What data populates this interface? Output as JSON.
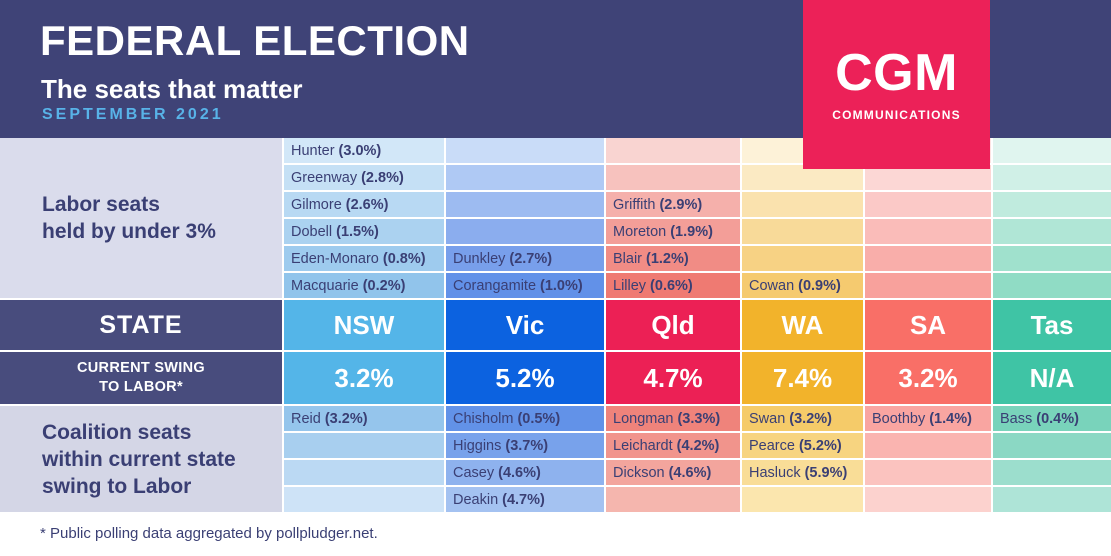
{
  "header": {
    "title": "FEDERAL ELECTION",
    "subtitle": "The seats that matter",
    "date": "SEPTEMBER 2021",
    "bg": "#3F4377",
    "date_color": "#58B3E8"
  },
  "logo": {
    "name": "CGM",
    "tagline": "COMMUNICATIONS",
    "bg": "#EC2158"
  },
  "labels": {
    "labor_lines": [
      "Labor seats",
      "held by under 3%"
    ],
    "labor_bg": "#DADCEC",
    "state": "STATE",
    "swing_lines": [
      "CURRENT SWING",
      "TO LABOR*"
    ],
    "coalition_lines": [
      "Coalition seats",
      "within current state",
      "swing to Labor"
    ],
    "coalition_bg": "#D4D6E6",
    "band_bg": "#484C7D",
    "text_color": "#3A3F74"
  },
  "columns": [
    {
      "state": "NSW",
      "swing": "3.2%",
      "color": "#54B5E8",
      "upper_colors": [
        "#D2E7F8",
        "#C5E0F5",
        "#B8D9F3",
        "#ABD2F0",
        "#9ECBEE",
        "#91C4EB"
      ],
      "upper_seats": [
        {
          "name": "Hunter",
          "pct": "(3.0%)"
        },
        {
          "name": "Greenway",
          "pct": "(2.8%)"
        },
        {
          "name": "Gilmore",
          "pct": "(2.6%)"
        },
        {
          "name": "Dobell",
          "pct": "(1.5%)"
        },
        {
          "name": "Eden-Monaro",
          "pct": "(0.8%)"
        },
        {
          "name": "Macquarie",
          "pct": "(0.2%)"
        }
      ],
      "lower_colors": [
        "#95C5EC",
        "#A8CFEF",
        "#BBD9F3",
        "#CEE3F7"
      ],
      "lower_seats": [
        {
          "name": "Reid",
          "pct": "(3.2%)"
        },
        null,
        null,
        null
      ]
    },
    {
      "state": "Vic",
      "swing": "5.2%",
      "color": "#0C62E0",
      "upper_colors": [
        "#C9DCF8",
        "#AFC9F4",
        "#9DBBF1",
        "#8BADEE",
        "#789FEB",
        "#6291E8"
      ],
      "upper_seats": [
        null,
        null,
        null,
        null,
        {
          "name": "Dunkley",
          "pct": "(2.7%)"
        },
        {
          "name": "Corangamite",
          "pct": "(1.0%)"
        }
      ],
      "lower_colors": [
        "#6292E8",
        "#78A2EB",
        "#8EB2EE",
        "#A4C2F1"
      ],
      "lower_seats": [
        {
          "name": "Chisholm",
          "pct": "(0.5%)"
        },
        {
          "name": "Higgins",
          "pct": "(3.7%)"
        },
        {
          "name": "Casey",
          "pct": "(4.6%)"
        },
        {
          "name": "Deakin",
          "pct": "(4.7%)"
        }
      ]
    },
    {
      "state": "Qld",
      "swing": "4.7%",
      "color": "#EC2055",
      "upper_colors": [
        "#F9D4D1",
        "#F7C2BE",
        "#F5B0AB",
        "#F39E98",
        "#F18C85",
        "#EF7A72"
      ],
      "upper_seats": [
        null,
        null,
        {
          "name": "Griffith",
          "pct": "(2.9%)"
        },
        {
          "name": "Moreton",
          "pct": "(1.9%)"
        },
        {
          "name": "Blair",
          "pct": "(1.2%)"
        },
        {
          "name": "Lilley",
          "pct": "(0.6%)"
        }
      ],
      "lower_colors": [
        "#EF837B",
        "#F1948C",
        "#F3A59D",
        "#F5B6AE"
      ],
      "lower_seats": [
        {
          "name": "Longman",
          "pct": "(3.3%)"
        },
        {
          "name": "Leichardt",
          "pct": "(4.2%)"
        },
        {
          "name": "Dickson",
          "pct": "(4.6%)"
        },
        null
      ]
    },
    {
      "state": "WA",
      "swing": "7.4%",
      "color": "#F2B32B",
      "upper_colors": [
        "#FDF2D8",
        "#FBEAC3",
        "#FAE2AE",
        "#F8DA99",
        "#F7D284",
        "#F5CA6F"
      ],
      "upper_seats": [
        null,
        null,
        null,
        null,
        null,
        {
          "name": "Cowan",
          "pct": "(0.9%)"
        }
      ],
      "lower_colors": [
        "#F5CB69",
        "#F7D480",
        "#F9DD97",
        "#FBE6AE"
      ],
      "lower_seats": [
        {
          "name": "Swan",
          "pct": "(3.2%)"
        },
        {
          "name": "Pearce",
          "pct": "(5.2%)"
        },
        {
          "name": "Hasluck",
          "pct": "(5.9%)"
        },
        null
      ]
    },
    {
      "state": "SA",
      "swing": "3.2%",
      "color": "#F96F67",
      "upper_colors": [
        "#FDE4E3",
        "#FCD7D5",
        "#FBC9C7",
        "#FABCB9",
        "#F9AEAA",
        "#F8A19C"
      ],
      "upper_seats": [
        null,
        null,
        null,
        null,
        null,
        null
      ],
      "lower_colors": [
        "#F9A5A1",
        "#FAB4B0",
        "#FBC3BF",
        "#FCD2CE"
      ],
      "lower_seats": [
        {
          "name": "Boothby",
          "pct": "(1.4%)"
        },
        null,
        null,
        null
      ]
    },
    {
      "state": "Tas",
      "swing": "N/A",
      "color": "#3FC4A5",
      "upper_colors": [
        "#E0F5EF",
        "#D0F0E7",
        "#C0EBDE",
        "#B0E6D6",
        "#A0E1CD",
        "#90DCC5"
      ],
      "upper_seats": [
        null,
        null,
        null,
        null,
        null,
        null
      ],
      "lower_colors": [
        "#79D3BB",
        "#8BD8C4",
        "#9CDECD",
        "#AEE4D7"
      ],
      "lower_seats": [
        {
          "name": "Bass",
          "pct": "(0.4%)"
        },
        null,
        null,
        null
      ]
    }
  ],
  "footnote": "* Public polling data aggregated by pollpludger.net.",
  "chart_data": {
    "type": "table",
    "title": "FEDERAL ELECTION — The seats that matter",
    "subtitle": "SEPTEMBER 2021",
    "states": [
      "NSW",
      "Vic",
      "Qld",
      "WA",
      "SA",
      "Tas"
    ],
    "current_swing_to_labor": [
      "3.2%",
      "5.2%",
      "4.7%",
      "7.4%",
      "3.2%",
      "N/A"
    ],
    "labor_seats_held_by_under_3pct": {
      "NSW": [
        "Hunter (3.0%)",
        "Greenway (2.8%)",
        "Gilmore (2.6%)",
        "Dobell (1.5%)",
        "Eden-Monaro (0.8%)",
        "Macquarie (0.2%)"
      ],
      "Vic": [
        "Dunkley (2.7%)",
        "Corangamite (1.0%)"
      ],
      "Qld": [
        "Griffith (2.9%)",
        "Moreton (1.9%)",
        "Blair (1.2%)",
        "Lilley (0.6%)"
      ],
      "WA": [
        "Cowan (0.9%)"
      ],
      "SA": [],
      "Tas": []
    },
    "coalition_seats_within_current_state_swing_to_labor": {
      "NSW": [
        "Reid (3.2%)"
      ],
      "Vic": [
        "Chisholm (0.5%)",
        "Higgins (3.7%)",
        "Casey (4.6%)",
        "Deakin (4.7%)"
      ],
      "Qld": [
        "Longman (3.3%)",
        "Leichardt (4.2%)",
        "Dickson (4.6%)"
      ],
      "WA": [
        "Swan (3.2%)",
        "Pearce (5.2%)",
        "Hasluck (5.9%)"
      ],
      "SA": [
        "Boothby (1.4%)"
      ],
      "Tas": [
        "Bass (0.4%)"
      ]
    },
    "footnote": "* Public polling data aggregated by pollpludger.net."
  }
}
